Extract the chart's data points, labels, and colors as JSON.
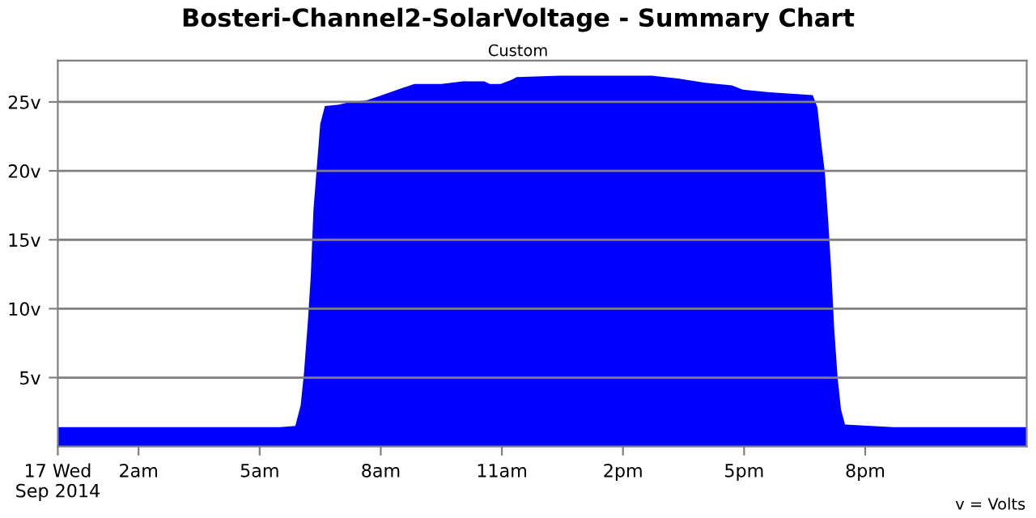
{
  "chart_data": {
    "type": "area",
    "title": "Bosteri-Channel2-SolarVoltage - Summary Chart",
    "subtitle": "Custom",
    "annotations": [
      "v = Volts"
    ],
    "xlim": [
      "2014-09-17T00:00",
      "2014-09-18T00:00"
    ],
    "ylim": [
      0,
      28
    ],
    "xticks": [
      {
        "value": "2014-09-17T00:00",
        "label": "17 Wed\nSep 2014"
      },
      {
        "value": "2014-09-17T02:00",
        "label": "2am"
      },
      {
        "value": "2014-09-17T05:00",
        "label": "5am"
      },
      {
        "value": "2014-09-17T08:00",
        "label": "8am"
      },
      {
        "value": "2014-09-17T11:00",
        "label": "11am"
      },
      {
        "value": "2014-09-17T14:00",
        "label": "2pm"
      },
      {
        "value": "2014-09-17T17:00",
        "label": "5pm"
      },
      {
        "value": "2014-09-17T20:00",
        "label": "8pm"
      }
    ],
    "yticks": [
      {
        "value": 5,
        "label": "5v"
      },
      {
        "value": 10,
        "label": "10v"
      },
      {
        "value": 15,
        "label": "15v"
      },
      {
        "value": 20,
        "label": "20v"
      },
      {
        "value": 25,
        "label": "25v"
      }
    ],
    "grid": "y",
    "series": [
      {
        "color": "#0000ff",
        "x": [
          "2014-09-17T00:00",
          "2014-09-17T01:00",
          "2014-09-17T02:00",
          "2014-09-17T03:00",
          "2014-09-17T04:00",
          "2014-09-17T05:00",
          "2014-09-17T05:30",
          "2014-09-17T05:53",
          "2014-09-17T06:01",
          "2014-09-17T06:06",
          "2014-09-17T06:12",
          "2014-09-17T06:16",
          "2014-09-17T06:20",
          "2014-09-17T06:25",
          "2014-09-17T06:30",
          "2014-09-17T06:37",
          "2014-09-17T06:58",
          "2014-09-17T07:14",
          "2014-09-17T07:38",
          "2014-09-17T08:02",
          "2014-09-17T08:31",
          "2014-09-17T08:50",
          "2014-09-17T09:30",
          "2014-09-17T10:02",
          "2014-09-17T10:34",
          "2014-09-17T10:42",
          "2014-09-17T10:58",
          "2014-09-17T11:14",
          "2014-09-17T11:22",
          "2014-09-17T12:26",
          "2014-09-17T14:43",
          "2014-09-17T15:22",
          "2014-09-17T16:02",
          "2014-09-17T16:42",
          "2014-09-17T16:58",
          "2014-09-17T17:38",
          "2014-09-17T18:42",
          "2014-09-17T18:49",
          "2014-09-17T18:54",
          "2014-09-17T19:00",
          "2014-09-17T19:05",
          "2014-09-17T19:10",
          "2014-09-17T19:14",
          "2014-09-17T19:19",
          "2014-09-17T19:24",
          "2014-09-17T19:30",
          "2014-09-17T20:42",
          "2014-09-17T22:00",
          "2014-09-17T23:00",
          "2014-09-18T00:00"
        ],
        "values": [
          1.4,
          1.4,
          1.4,
          1.4,
          1.4,
          1.4,
          1.4,
          1.5,
          3.0,
          5.4,
          9.3,
          12.4,
          17.2,
          20.3,
          23.4,
          24.7,
          24.8,
          25.0,
          25.1,
          25.5,
          26.0,
          26.3,
          26.3,
          26.5,
          26.5,
          26.3,
          26.3,
          26.6,
          26.8,
          26.9,
          26.9,
          26.7,
          26.4,
          26.2,
          25.9,
          25.7,
          25.5,
          24.6,
          22.3,
          19.9,
          16.4,
          12.4,
          8.5,
          5.0,
          2.7,
          1.6,
          1.4,
          1.4,
          1.4,
          1.4
        ]
      }
    ]
  }
}
